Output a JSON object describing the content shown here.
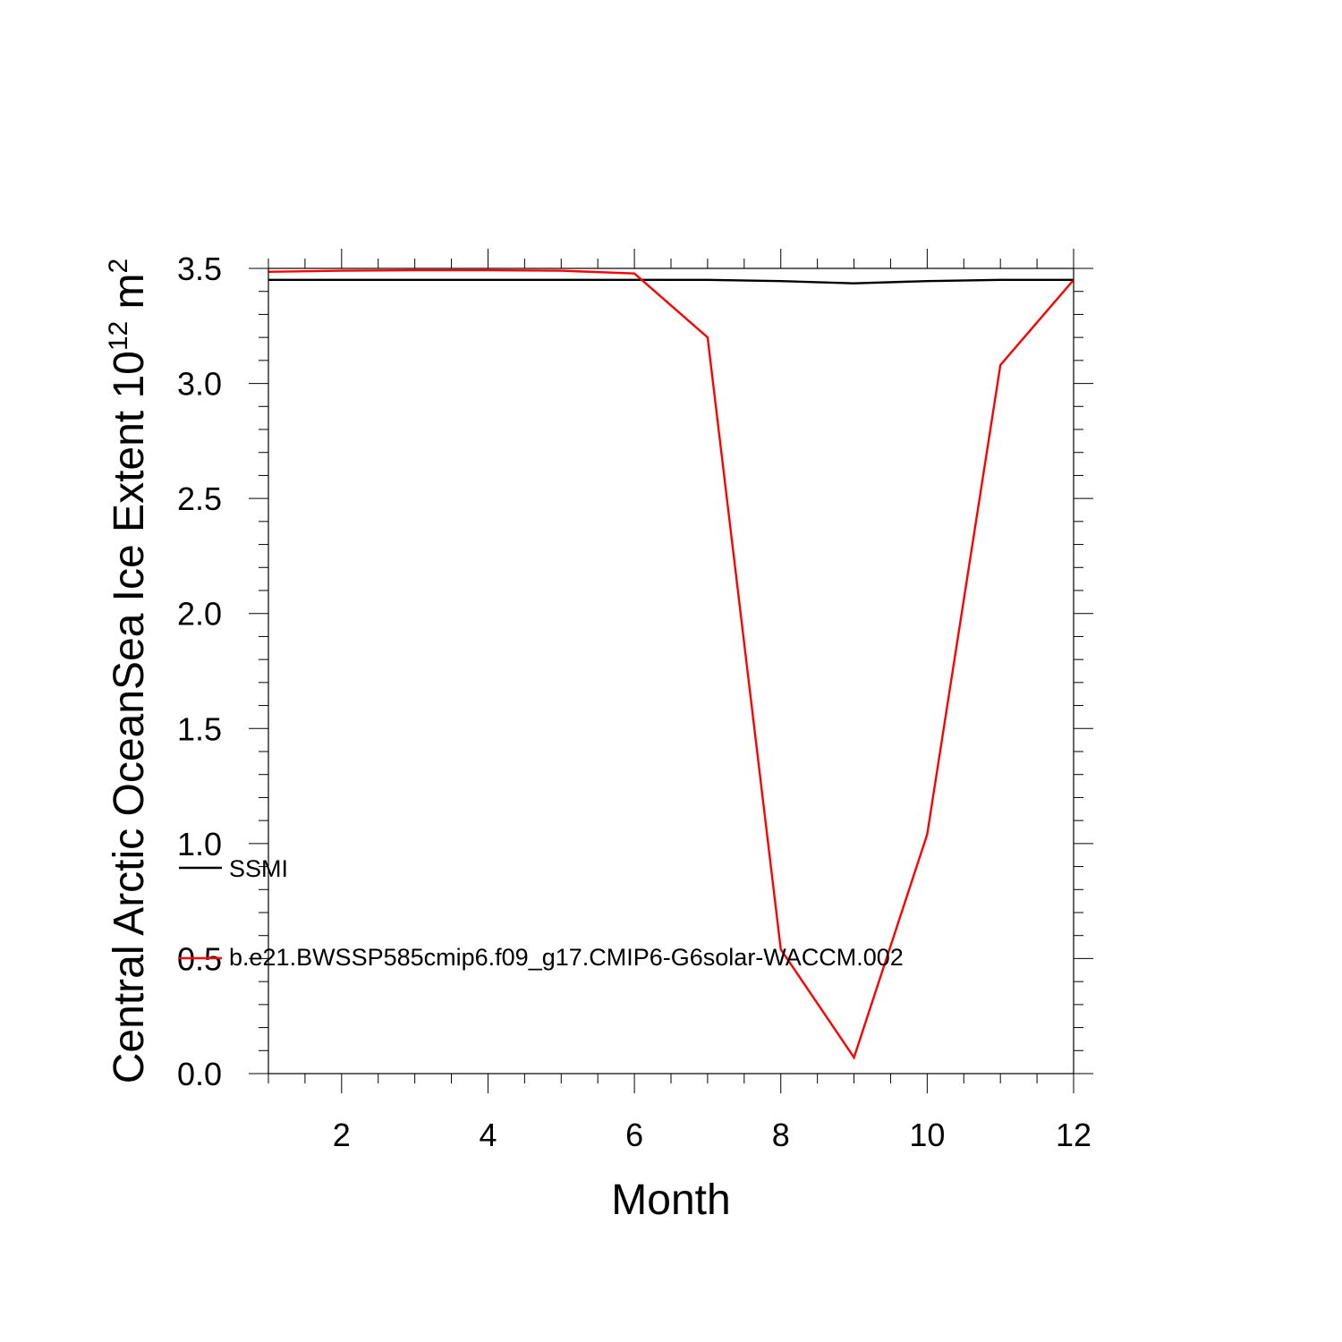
{
  "chart_data": {
    "type": "line",
    "xlabel": "Month",
    "ylabel_main": "Central Arctic OceanSea Ice Extent 10",
    "ylabel_sup1": "12",
    "ylabel_mid": " m",
    "ylabel_sup2": "2",
    "xlim": [
      1,
      12
    ],
    "ylim": [
      0,
      3.5
    ],
    "x_ticks": [
      2,
      4,
      6,
      8,
      10,
      12
    ],
    "x_tick_labels": [
      "2",
      "4",
      "6",
      "8",
      "10",
      "12"
    ],
    "y_ticks": [
      0,
      0.5,
      1,
      1.5,
      2,
      2.5,
      3,
      3.5
    ],
    "y_tick_labels": [
      "0.0",
      "0.5",
      "1.0",
      "1.5",
      "2.0",
      "2.5",
      "3.0",
      "3.5"
    ],
    "x": [
      1,
      2,
      3,
      4,
      5,
      6,
      7,
      8,
      9,
      10,
      11,
      12
    ],
    "series": [
      {
        "name": "SSMI",
        "color": "#000000",
        "values": [
          3.45,
          3.45,
          3.45,
          3.45,
          3.45,
          3.45,
          3.45,
          3.445,
          3.435,
          3.445,
          3.45,
          3.45
        ]
      },
      {
        "name": "b.e21.BWSSP585cmip6.f09_g17.CMIP6-G6solar-WACCM.002",
        "color": "#ff0000",
        "values": [
          3.485,
          3.49,
          3.492,
          3.492,
          3.49,
          3.478,
          3.2,
          0.54,
          0.07,
          1.04,
          3.08,
          3.45
        ]
      }
    ],
    "legend_position": "left-inside"
  }
}
